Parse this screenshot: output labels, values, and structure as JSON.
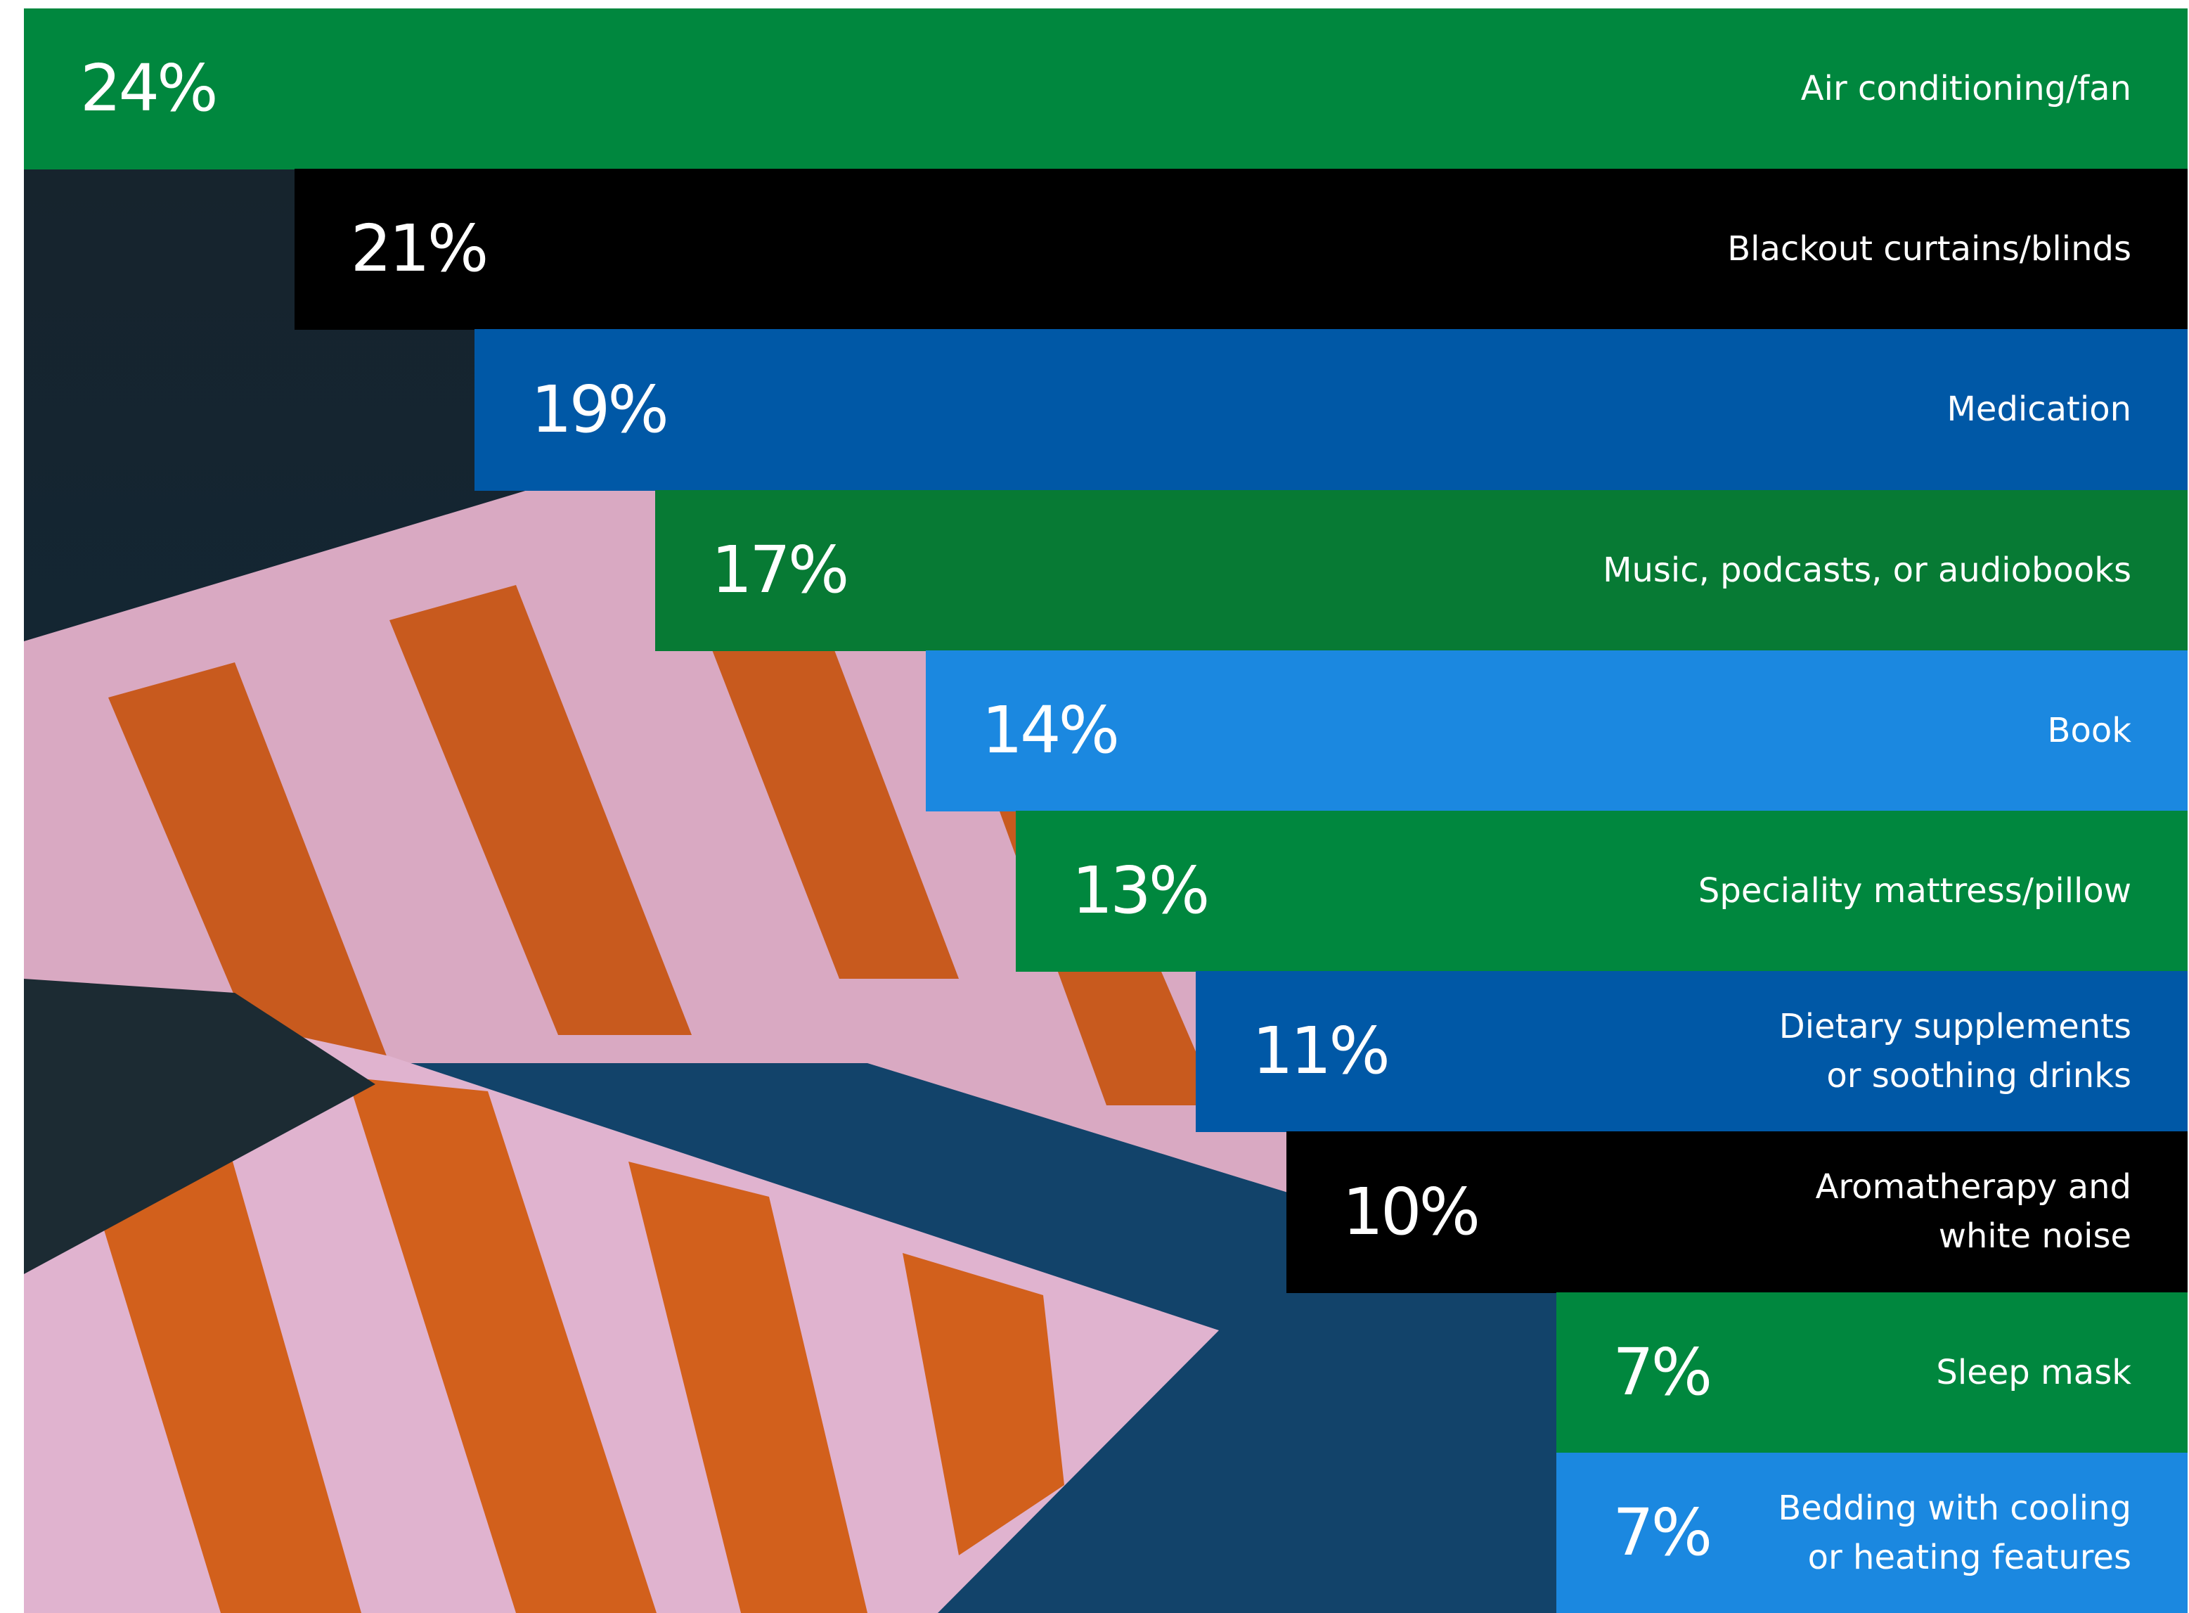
{
  "chart_data": {
    "type": "bar",
    "orientation": "horizontal",
    "categories": [
      "Air conditioning/fan",
      "Blackout curtains/blinds",
      "Medication",
      "Music, podcasts, or audiobooks",
      "Book",
      "Speciality mattress/pillow",
      "Dietary supplements\nor soothing drinks",
      "Aromatherapy and\nwhite noise",
      "Sleep mask",
      "Bedding with cooling\nor heating features"
    ],
    "values": [
      24,
      21,
      19,
      17,
      14,
      13,
      11,
      10,
      7,
      7
    ],
    "value_labels": [
      "24%",
      "21%",
      "19%",
      "17%",
      "14%",
      "13%",
      "11%",
      "10%",
      "7%",
      "7%"
    ],
    "colors": [
      "#00873e",
      "#000000",
      "#0058a6",
      "#077a34",
      "#1b88e0",
      "#00873e",
      "#0058a6",
      "#000000",
      "#00873e",
      "#1b88e0"
    ]
  }
}
